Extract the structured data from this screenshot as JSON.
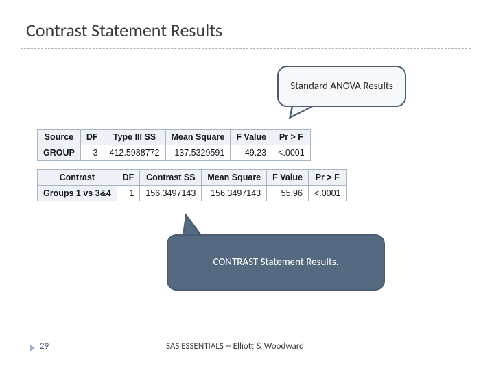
{
  "title": "Contrast Statement Results",
  "callout_top": "Standard ANOVA Results",
  "callout_bottom": "CONTRAST Statement Results.",
  "table1": {
    "headers": [
      "Source",
      "DF",
      "Type III SS",
      "Mean Square",
      "F Value",
      "Pr > F"
    ],
    "row": {
      "source": "GROUP",
      "df": "3",
      "ss": "412.5988772",
      "ms": "137.5329591",
      "f": "49.23",
      "p": "<.0001"
    }
  },
  "table2": {
    "headers": [
      "Contrast",
      "DF",
      "Contrast SS",
      "Mean Square",
      "F Value",
      "Pr > F"
    ],
    "row": {
      "contrast": "Groups 1 vs 3&4",
      "df": "1",
      "ss": "156.3497143",
      "ms": "156.3497143",
      "f": "55.96",
      "p": "<.0001"
    }
  },
  "page_number": "29",
  "footer": "SAS ESSENTIALS -- Elliott & Woodward",
  "colors": {
    "callout_border": "#4a5d73",
    "callout_bg_top": "#f6f8fa",
    "callout_bg_bottom": "#556a80",
    "table_header_bg": "#eef2f6",
    "table_border": "#a6b6c6",
    "divider": "#b0b0b0"
  }
}
